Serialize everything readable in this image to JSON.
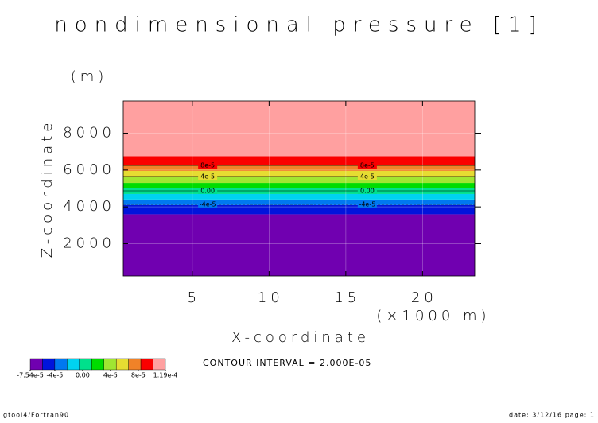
{
  "chart_data": {
    "type": "contour",
    "title": "nondimensional pressure [1]",
    "ylabel": "Z-coordinate",
    "xlabel": "X-coordinate",
    "y_unit": "(m)",
    "x_unit": "(×1000 m)",
    "xlim": [
      0.5,
      23.4
    ],
    "ylim": [
      250,
      9750
    ],
    "xticks": [
      5,
      10,
      15,
      20
    ],
    "yticks": [
      2000,
      4000,
      6000,
      8000
    ],
    "grid": true,
    "bands": [
      {
        "color": "#7000b0",
        "z": [
          250,
          3600
        ]
      },
      {
        "color": "#0014dc",
        "z": [
          3600,
          4100
        ]
      },
      {
        "color": "#0078f0",
        "z": [
          4100,
          4400
        ]
      },
      {
        "color": "#00d2f0",
        "z": [
          4400,
          4700
        ]
      },
      {
        "color": "#00e08c",
        "z": [
          4700,
          5000
        ]
      },
      {
        "color": "#00dc00",
        "z": [
          5000,
          5300
        ]
      },
      {
        "color": "#a0e632",
        "z": [
          5300,
          5650
        ]
      },
      {
        "color": "#e6dc32",
        "z": [
          5650,
          5950
        ]
      },
      {
        "color": "#f08228",
        "z": [
          5950,
          6250
        ]
      },
      {
        "color": "#fa0000",
        "z": [
          6250,
          6750
        ]
      },
      {
        "color": "#ffa0a0",
        "z": [
          6750,
          9750
        ]
      }
    ],
    "contours": [
      {
        "value": 8e-05,
        "label": "8e-5",
        "z": 6250
      },
      {
        "value": 4e-05,
        "label": "4e-5",
        "z": 5650
      },
      {
        "value": 0,
        "label": "0.00",
        "z": 4870
      },
      {
        "value": -4e-05,
        "label": "-4e-5",
        "z": 4140
      }
    ],
    "contour_label_x": [
      6.0,
      16.4
    ],
    "colorbar_colors": [
      "#7000b0",
      "#0014dc",
      "#0078f0",
      "#00d2f0",
      "#00e08c",
      "#00dc00",
      "#a0e632",
      "#e6dc32",
      "#f08228",
      "#fa0000",
      "#ffa0a0"
    ],
    "colorbar_lim": [
      -7.54e-05,
      0.000119
    ],
    "colorbar_ticks": [
      {
        "value": -7.54e-05,
        "label": "-7.54e-5"
      },
      {
        "value": -4e-05,
        "label": "-4e-5"
      },
      {
        "value": 0,
        "label": "0.00"
      },
      {
        "value": 4e-05,
        "label": "4e-5"
      },
      {
        "value": 8e-05,
        "label": "8e-5"
      },
      {
        "value": 0.000119,
        "label": "1.19e-4"
      }
    ],
    "contour_interval_text": "CONTOUR INTERVAL = 2.000E-05",
    "footer_left": "gtool4/Fortran90",
    "footer_right": "date: 3/12/16 page: 1"
  }
}
